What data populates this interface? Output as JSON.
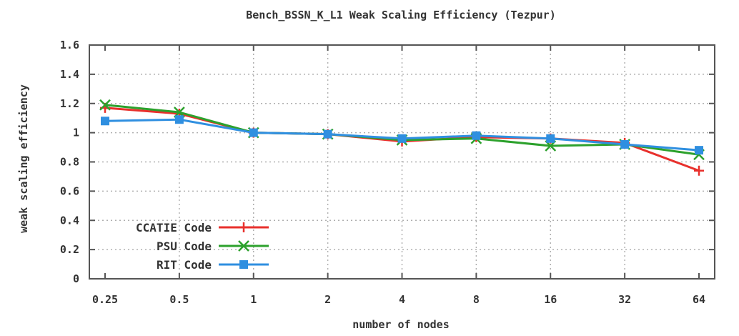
{
  "chart_data": {
    "type": "line",
    "title": "Bench_BSSN_K_L1 Weak Scaling Efficiency (Tezpur)",
    "xlabel": "number of nodes",
    "ylabel": "weak scaling efficiency",
    "categories": [
      "0.25",
      "0.5",
      "1",
      "2",
      "4",
      "8",
      "16",
      "32",
      "64"
    ],
    "y_ticks": [
      "0",
      "0.2",
      "0.4",
      "0.6",
      "0.8",
      "1",
      "1.2",
      "1.4",
      "1.6"
    ],
    "ylim": [
      0,
      1.6
    ],
    "grid": true,
    "legend_position": "bottom-left",
    "series": [
      {
        "name": "CCATIE Code",
        "color": "#e8302c",
        "marker": "plus",
        "values": [
          1.17,
          1.13,
          1.0,
          0.99,
          0.94,
          0.97,
          0.96,
          0.93,
          0.74
        ]
      },
      {
        "name": "PSU Code",
        "color": "#2ca12c",
        "marker": "x",
        "values": [
          1.19,
          1.14,
          1.0,
          0.99,
          0.95,
          0.96,
          0.91,
          0.92,
          0.85
        ]
      },
      {
        "name": "RIT Code",
        "color": "#2f8fe0",
        "marker": "square",
        "values": [
          1.08,
          1.09,
          1.0,
          0.99,
          0.96,
          0.98,
          0.96,
          0.92,
          0.88
        ]
      }
    ]
  }
}
